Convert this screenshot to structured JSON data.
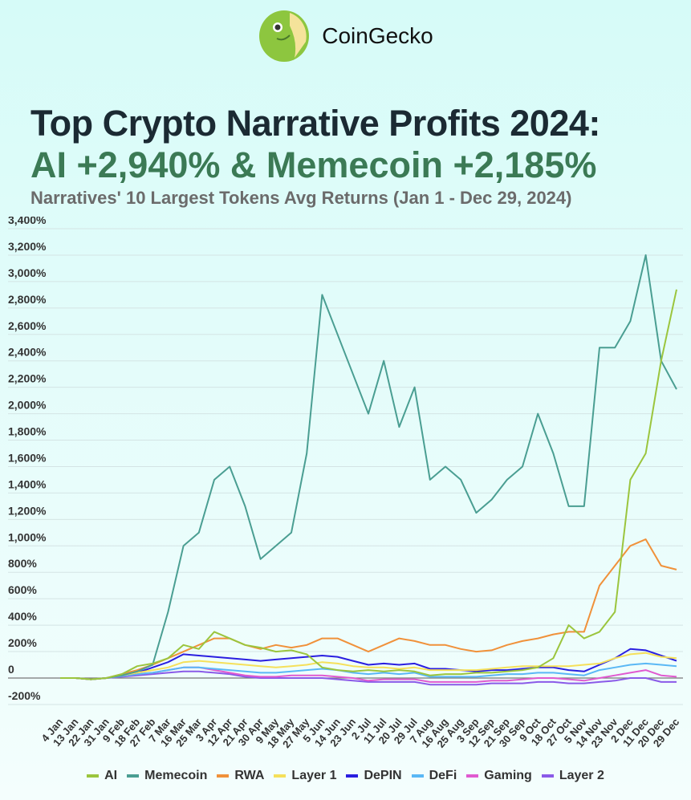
{
  "brand": {
    "name": "CoinGecko"
  },
  "title_line1": "Top Crypto Narrative Profits 2024:",
  "title_line2": "AI +2,940% & Memecoin +2,185%",
  "subtitle": "Narratives' 10 Largest Tokens Avg Returns (Jan 1 - Dec 29, 2024)",
  "chart_data": {
    "type": "line",
    "title": "Narratives' 10 Largest Tokens Avg Returns (Jan 1 - Dec 29, 2024)",
    "xlabel": "",
    "ylabel": "",
    "ylim": [
      -200,
      3400
    ],
    "yticks": [
      -200,
      0,
      200,
      400,
      600,
      800,
      1000,
      1200,
      1400,
      1600,
      1800,
      2000,
      2200,
      2400,
      2600,
      2800,
      3000,
      3200,
      3400
    ],
    "ytick_labels": [
      "-200%",
      "0",
      "200%",
      "400%",
      "600%",
      "800%",
      "1,000%",
      "1,200%",
      "1,400%",
      "1,600%",
      "1,800%",
      "2,000%",
      "2,200%",
      "2,400%",
      "2,600%",
      "2,800%",
      "3,000%",
      "3,200%",
      "3,400%"
    ],
    "categories": [
      "4 Jan",
      "13 Jan",
      "22 Jan",
      "31 Jan",
      "9 Feb",
      "18 Feb",
      "27 Feb",
      "7 Mar",
      "16 Mar",
      "25 Mar",
      "3 Apr",
      "12 Apr",
      "21 Apr",
      "30 Apr",
      "9 May",
      "18 May",
      "27 May",
      "5 Jun",
      "14 Jun",
      "23 Jun",
      "2 Jul",
      "11 Jul",
      "20 Jul",
      "29 Jul",
      "7 Aug",
      "16 Aug",
      "25 Aug",
      "3 Sep",
      "12 Sep",
      "21 Sep",
      "30 Sep",
      "9 Oct",
      "18 Oct",
      "27 Oct",
      "5 Nov",
      "14 Nov",
      "23 Nov",
      "2 Dec",
      "11 Dec",
      "20 Dec",
      "29 Dec"
    ],
    "grid": true,
    "legend": "bottom",
    "series": [
      {
        "name": "AI",
        "color": "#9bc53d",
        "values": [
          0,
          0,
          -10,
          0,
          30,
          90,
          110,
          150,
          250,
          220,
          350,
          300,
          250,
          230,
          200,
          210,
          180,
          80,
          60,
          50,
          60,
          50,
          60,
          50,
          20,
          30,
          30,
          40,
          40,
          50,
          60,
          80,
          150,
          400,
          300,
          350,
          500,
          1500,
          1700,
          2400,
          2940
        ]
      },
      {
        "name": "Memecoin",
        "color": "#4a9e92",
        "values": [
          0,
          0,
          -10,
          0,
          20,
          50,
          100,
          500,
          1000,
          1100,
          1500,
          1600,
          1300,
          900,
          1000,
          1100,
          1700,
          2900,
          2600,
          2300,
          2000,
          2400,
          1900,
          2200,
          1500,
          1600,
          1500,
          1250,
          1350,
          1500,
          1600,
          2000,
          1700,
          1300,
          1300,
          2500,
          2500,
          2700,
          3200,
          2400,
          2185
        ]
      },
      {
        "name": "RWA",
        "color": "#f0913a",
        "values": [
          0,
          0,
          -10,
          0,
          30,
          60,
          100,
          150,
          200,
          250,
          300,
          300,
          250,
          220,
          250,
          230,
          250,
          300,
          300,
          250,
          200,
          250,
          300,
          280,
          250,
          250,
          220,
          200,
          210,
          250,
          280,
          300,
          330,
          350,
          350,
          700,
          850,
          1000,
          1050,
          850,
          820
        ]
      },
      {
        "name": "Layer 1",
        "color": "#f5e05a",
        "values": [
          0,
          0,
          -10,
          0,
          20,
          40,
          60,
          80,
          120,
          130,
          120,
          110,
          100,
          90,
          80,
          90,
          100,
          120,
          110,
          90,
          80,
          80,
          70,
          80,
          60,
          60,
          60,
          60,
          70,
          80,
          90,
          90,
          90,
          90,
          100,
          110,
          150,
          180,
          190,
          160,
          150
        ]
      },
      {
        "name": "DePIN",
        "color": "#2a1ee0",
        "values": [
          0,
          0,
          -10,
          0,
          20,
          40,
          80,
          120,
          180,
          170,
          160,
          150,
          140,
          130,
          140,
          150,
          160,
          170,
          160,
          130,
          100,
          110,
          100,
          110,
          70,
          70,
          60,
          50,
          60,
          60,
          70,
          80,
          80,
          60,
          50,
          100,
          150,
          220,
          210,
          170,
          130
        ]
      },
      {
        "name": "DeFi",
        "color": "#5ab8f5",
        "values": [
          0,
          0,
          -10,
          0,
          15,
          30,
          40,
          60,
          80,
          80,
          70,
          60,
          50,
          40,
          40,
          50,
          60,
          70,
          60,
          40,
          30,
          40,
          30,
          40,
          10,
          10,
          10,
          10,
          20,
          30,
          30,
          40,
          40,
          30,
          20,
          60,
          80,
          100,
          110,
          100,
          90
        ]
      },
      {
        "name": "Gaming",
        "color": "#e05ad0",
        "values": [
          0,
          0,
          -10,
          0,
          15,
          30,
          40,
          60,
          80,
          80,
          60,
          40,
          20,
          10,
          10,
          20,
          20,
          20,
          10,
          0,
          -20,
          -10,
          -10,
          -10,
          -30,
          -30,
          -30,
          -30,
          -20,
          -20,
          -10,
          0,
          0,
          -10,
          -20,
          0,
          20,
          40,
          60,
          20,
          10
        ]
      },
      {
        "name": "Layer 2",
        "color": "#8a5ae8",
        "values": [
          0,
          0,
          -10,
          0,
          10,
          20,
          30,
          40,
          50,
          50,
          40,
          30,
          10,
          0,
          0,
          0,
          0,
          0,
          -10,
          -20,
          -30,
          -30,
          -30,
          -30,
          -50,
          -50,
          -50,
          -50,
          -40,
          -40,
          -40,
          -30,
          -30,
          -40,
          -40,
          -30,
          -20,
          0,
          0,
          -30,
          -30
        ]
      }
    ]
  }
}
